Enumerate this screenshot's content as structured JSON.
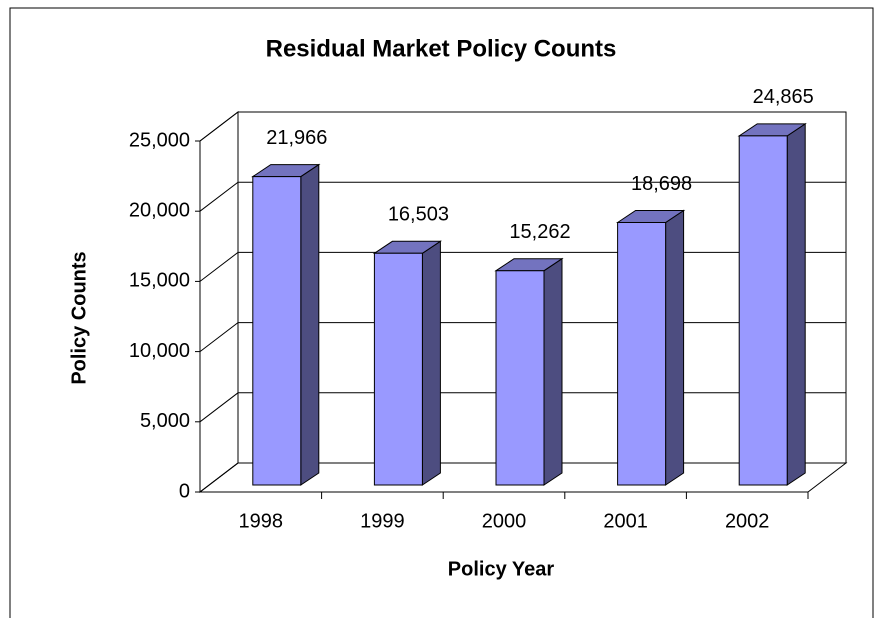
{
  "chart_data": {
    "type": "bar3d",
    "title": "Residual Market Policy Counts",
    "x_label": "Policy Year",
    "y_label": "Policy Counts",
    "categories": [
      "1998",
      "1999",
      "2000",
      "2001",
      "2002"
    ],
    "values": [
      21966,
      16503,
      15262,
      18698,
      24865
    ],
    "value_labels": [
      "21,966",
      "16,503",
      "15,262",
      "18,698",
      "24,865"
    ],
    "color": "#9999ff",
    "ylim": [
      0,
      25000
    ],
    "yticks": [
      0,
      {
        "value": 5000,
        "label": "5,000"
      },
      {
        "value": 10000,
        "label": "10,000"
      },
      {
        "value": 15000,
        "label": "15,000"
      },
      {
        "value": 20000,
        "label": "20,000"
      },
      {
        "value": 25000,
        "label": "25,000"
      }
    ],
    "grid": true
  }
}
